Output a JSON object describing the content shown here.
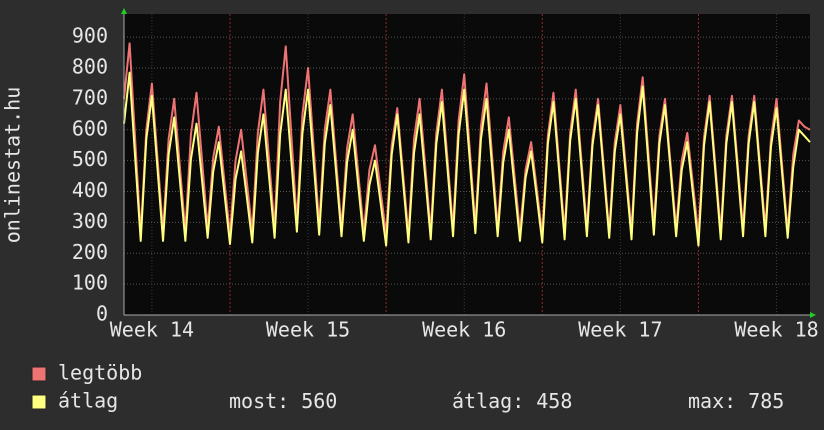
{
  "chart_data": {
    "type": "line",
    "y_label": "onlinestat.hu",
    "x": [
      0,
      0.25,
      0.5,
      0.75,
      1,
      1.25,
      1.5,
      1.75,
      2,
      2.25,
      2.5,
      2.75,
      3,
      3.25,
      3.5,
      3.75,
      4,
      4.25,
      4.5,
      4.75,
      5,
      5.25,
      5.5,
      5.75,
      6,
      6.25,
      6.5,
      6.75,
      7,
      7.25,
      7.5,
      7.75,
      8,
      8.25,
      8.5,
      8.75,
      9,
      9.25,
      9.5,
      9.75,
      10,
      10.25,
      10.5,
      10.75,
      11,
      11.25,
      11.5,
      11.75,
      12,
      12.25,
      12.5,
      12.75,
      13,
      13.25,
      13.5,
      13.75,
      14,
      14.25,
      14.5,
      14.75,
      15,
      15.25,
      15.5,
      15.75,
      16,
      16.25,
      16.5,
      16.75,
      17,
      17.25,
      17.5,
      17.75,
      18,
      18.25,
      18.5,
      18.75,
      19,
      19.25,
      19.5,
      19.75,
      20,
      20.25,
      20.5,
      20.75,
      21,
      21.25,
      21.5,
      21.75,
      22,
      22.25,
      22.5,
      22.75,
      23,
      23.25,
      23.5,
      23.75,
      24,
      24.25,
      24.5,
      24.75,
      25,
      25.25,
      25.5,
      25.75,
      26,
      26.25,
      26.5,
      26.75,
      27,
      27.25,
      27.5,
      27.75,
      28,
      28.25,
      28.5,
      28.75,
      29,
      29.25,
      29.5,
      29.75,
      30,
      30.25,
      30.5,
      30.75
    ],
    "series": [
      {
        "name": "legtöbb",
        "color": "#f07373",
        "values": [
          700,
          880,
          570,
          260,
          600,
          750,
          510,
          270,
          570,
          700,
          485,
          270,
          585,
          720,
          500,
          280,
          510,
          610,
          435,
          260,
          500,
          600,
          435,
          270,
          590,
          730,
          505,
          280,
          690,
          870,
          585,
          300,
          650,
          800,
          545,
          290,
          600,
          730,
          505,
          280,
          540,
          650,
          460,
          270,
          470,
          550,
          405,
          260,
          550,
          670,
          465,
          260,
          570,
          700,
          485,
          270,
          590,
          730,
          505,
          280,
          630,
          780,
          535,
          290,
          610,
          750,
          515,
          280,
          530,
          640,
          455,
          270,
          470,
          560,
          410,
          260,
          580,
          720,
          495,
          270,
          590,
          730,
          505,
          280,
          570,
          700,
          485,
          270,
          560,
          680,
          475,
          270,
          620,
          770,
          530,
          290,
          580,
          700,
          490,
          280,
          500,
          590,
          425,
          260,
          575,
          710,
          490,
          270,
          580,
          710,
          495,
          280,
          580,
          710,
          495,
          280,
          570,
          700,
          485,
          270,
          520,
          630,
          610,
          600
        ]
      },
      {
        "name": "átlag",
        "color": "#ffff80",
        "values": [
          620,
          785,
          510,
          240,
          570,
          710,
          475,
          240,
          520,
          640,
          440,
          240,
          505,
          620,
          435,
          250,
          465,
          560,
          395,
          230,
          440,
          530,
          385,
          235,
          525,
          650,
          450,
          250,
          585,
          730,
          500,
          270,
          590,
          730,
          495,
          260,
          555,
          680,
          470,
          255,
          495,
          600,
          420,
          240,
          420,
          500,
          365,
          225,
          520,
          650,
          440,
          235,
          525,
          650,
          450,
          245,
          555,
          690,
          475,
          255,
          585,
          730,
          500,
          265,
          570,
          700,
          480,
          255,
          495,
          600,
          420,
          240,
          445,
          530,
          385,
          235,
          555,
          690,
          470,
          245,
          565,
          700,
          480,
          255,
          550,
          680,
          465,
          250,
          530,
          650,
          450,
          245,
          590,
          740,
          500,
          260,
          555,
          680,
          470,
          255,
          470,
          560,
          395,
          225,
          550,
          690,
          470,
          245,
          555,
          690,
          475,
          255,
          555,
          690,
          475,
          255,
          545,
          670,
          460,
          250,
          480,
          600,
          580,
          560
        ]
      }
    ],
    "stats": [
      {
        "label": "most:",
        "value": 560
      },
      {
        "label": "átlag:",
        "value": 458
      },
      {
        "label": "max:",
        "value": 785
      }
    ],
    "xlim": [
      0,
      30.75
    ],
    "xticks": [
      {
        "value": 1.25,
        "label": "Week 14"
      },
      {
        "value": 8.25,
        "label": "Week 15"
      },
      {
        "value": 15.25,
        "label": "Week 16"
      },
      {
        "value": 22.25,
        "label": "Week 17"
      },
      {
        "value": 29.25,
        "label": "Week 18"
      }
    ],
    "ylim": [
      0,
      975
    ],
    "yticks": [
      0,
      100,
      200,
      300,
      400,
      500,
      600,
      700,
      800,
      900
    ],
    "grid": true
  }
}
